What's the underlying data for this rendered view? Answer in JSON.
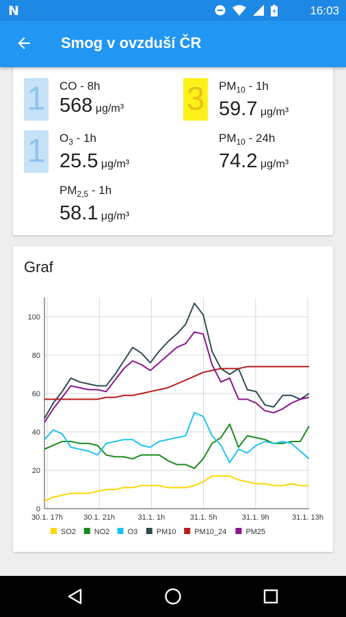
{
  "status_bar": {
    "time": "16:03"
  },
  "app_bar": {
    "title": "Smog v ovzduší ČR"
  },
  "measurements": [
    {
      "index": "1",
      "index_color": "blue",
      "name": "CO",
      "name_sub": "",
      "name_suffix": " - 8h",
      "value": "568",
      "unit": "μg/m³"
    },
    {
      "index": "3",
      "index_color": "yellow",
      "name": "PM",
      "name_sub": "10",
      "name_suffix": " - 1h",
      "value": "59.7",
      "unit": "μg/m³"
    },
    {
      "index": "1",
      "index_color": "blue",
      "name": "O",
      "name_sub": "3",
      "name_suffix": " - 1h",
      "value": "25.5",
      "unit": "μg/m³"
    },
    {
      "index": "",
      "index_color": "",
      "name": "PM",
      "name_sub": "10",
      "name_suffix": " - 24h",
      "value": "74.2",
      "unit": "μg/m³"
    },
    {
      "index": "",
      "index_color": "",
      "name": "PM",
      "name_sub": "2,5",
      "name_suffix": " - 1h",
      "value": "58.1",
      "unit": "μg/m³"
    }
  ],
  "graph": {
    "title": "Graf"
  },
  "colors": {
    "app_bar": "#2196f3",
    "status_bar": "#1e88e5",
    "index_blue": "#c6e2f7",
    "index_yellow": "#fdf11b"
  },
  "chart_data": {
    "type": "line",
    "title": "",
    "xlabel": "",
    "ylabel": "",
    "ylim": [
      0,
      110
    ],
    "yticks": [
      0,
      20,
      40,
      60,
      80,
      100
    ],
    "x": [
      0,
      1,
      2,
      3,
      4,
      5,
      6,
      7,
      8,
      9,
      10,
      11,
      12,
      13,
      14,
      15,
      16,
      17,
      18,
      19,
      20,
      21,
      22,
      23,
      24,
      25,
      26,
      27,
      28,
      29,
      30
    ],
    "xticks": [
      {
        "pos": 1,
        "label": "30.1. 17h"
      },
      {
        "pos": 7,
        "label": "30.1. 21h"
      },
      {
        "pos": 13,
        "label": "31.1. 1h"
      },
      {
        "pos": 19,
        "label": "31.1. 5h"
      },
      {
        "pos": 25,
        "label": "31.1. 9h"
      },
      {
        "pos": 31,
        "label": "31.1. 13h"
      }
    ],
    "legend_position": "bottom",
    "series": [
      {
        "name": "SO2",
        "color": "#ffd600",
        "values": [
          4,
          6,
          7,
          8,
          8,
          8,
          9,
          10,
          10,
          11,
          11,
          12,
          12,
          12,
          11,
          11,
          11,
          12,
          14,
          17,
          17,
          17,
          15,
          14,
          13,
          13,
          12,
          12,
          13,
          12,
          12
        ]
      },
      {
        "name": "NO2",
        "color": "#1b8a1b",
        "values": [
          31,
          33,
          35,
          35,
          34,
          34,
          33,
          28,
          27,
          27,
          26,
          28,
          28,
          28,
          25,
          23,
          23,
          21,
          26,
          34,
          37,
          44,
          32,
          38,
          37,
          36,
          34,
          34,
          35,
          35,
          43
        ]
      },
      {
        "name": "O3",
        "color": "#1ec2f2",
        "values": [
          36,
          41,
          39,
          32,
          31,
          30,
          28,
          34,
          35,
          36,
          36,
          33,
          32,
          35,
          36,
          37,
          38,
          50,
          48,
          38,
          33,
          24,
          31,
          29,
          33,
          35,
          34,
          35,
          34,
          30,
          26
        ]
      },
      {
        "name": "PM10",
        "color": "#2e4a52",
        "values": [
          47,
          55,
          61,
          68,
          66,
          65,
          64,
          64,
          70,
          77,
          84,
          81,
          76,
          82,
          87,
          91,
          96,
          107,
          101,
          82,
          73,
          70,
          73,
          62,
          61,
          54,
          53,
          59,
          59,
          57,
          60
        ]
      },
      {
        "name": "PM10_24",
        "color": "#b71c1c",
        "values": [
          57,
          57,
          57,
          57,
          57,
          57,
          57,
          58,
          58,
          59,
          59,
          60,
          61,
          62,
          63,
          65,
          67,
          69,
          71,
          72,
          73,
          73,
          73,
          74,
          74,
          74,
          74,
          74,
          74,
          74,
          74
        ]
      },
      {
        "name": "PM25",
        "color": "#8b158f",
        "values": [
          45,
          52,
          58,
          64,
          63,
          62,
          62,
          61,
          67,
          73,
          77,
          75,
          72,
          76,
          80,
          84,
          86,
          92,
          91,
          75,
          66,
          68,
          57,
          57,
          55,
          51,
          50,
          52,
          55,
          57,
          58
        ]
      }
    ]
  }
}
